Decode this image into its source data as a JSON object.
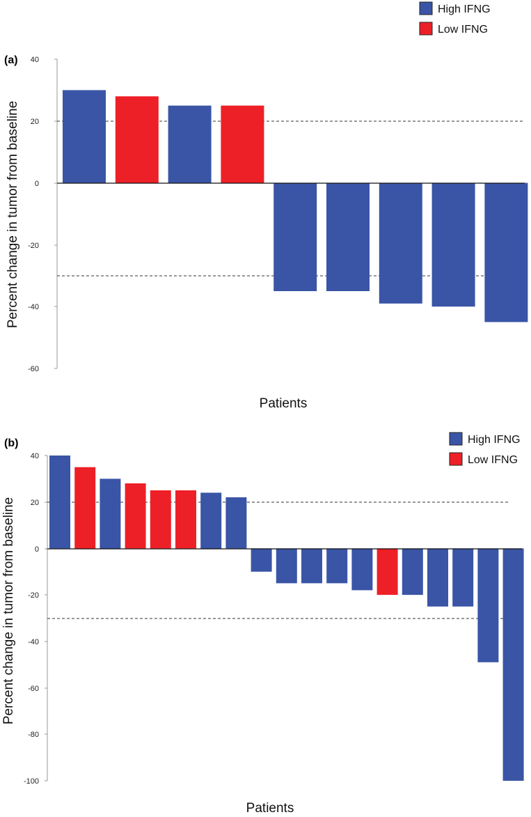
{
  "colors": {
    "high": "#3a55a6",
    "low": "#ee2027"
  },
  "chart_data": [
    {
      "type": "bar",
      "panel_label": "(a)",
      "title": "",
      "ylabel": "Percent change in tumor from baseline",
      "xlabel": "Patients",
      "ylim": [
        -60,
        40
      ],
      "yticks": [
        "40",
        "20",
        "0",
        "-20",
        "-40",
        "-60"
      ],
      "reference_lines": [
        20,
        -30
      ],
      "legend": {
        "high_label": "High IFNG",
        "low_label": "Low IFNG",
        "placement": "top-right"
      },
      "values": [
        30,
        28,
        25,
        25,
        -35,
        -35,
        -39,
        -40,
        -45
      ],
      "groups": [
        "high",
        "low",
        "high",
        "low",
        "high",
        "high",
        "high",
        "high",
        "high"
      ]
    },
    {
      "type": "bar",
      "panel_label": "(b)",
      "title": "",
      "ylabel": "Percent change in tumor from baseline",
      "xlabel": "Patients",
      "ylim": [
        -100,
        40
      ],
      "yticks": [
        "40",
        "20",
        "0",
        "-20",
        "-40",
        "-60",
        "-80",
        "-100"
      ],
      "reference_lines": [
        20,
        -30
      ],
      "legend": {
        "high_label": "High IFNG",
        "low_label": "Low IFNG",
        "placement": "top-right"
      },
      "values": [
        40,
        35,
        30,
        28,
        25,
        25,
        24,
        22,
        -10,
        -15,
        -15,
        -15,
        -18,
        -20,
        -20,
        -25,
        -25,
        -49,
        -100
      ],
      "groups": [
        "high",
        "low",
        "high",
        "low",
        "low",
        "low",
        "high",
        "high",
        "high",
        "high",
        "high",
        "high",
        "high",
        "low",
        "high",
        "high",
        "high",
        "high",
        "high"
      ]
    }
  ]
}
